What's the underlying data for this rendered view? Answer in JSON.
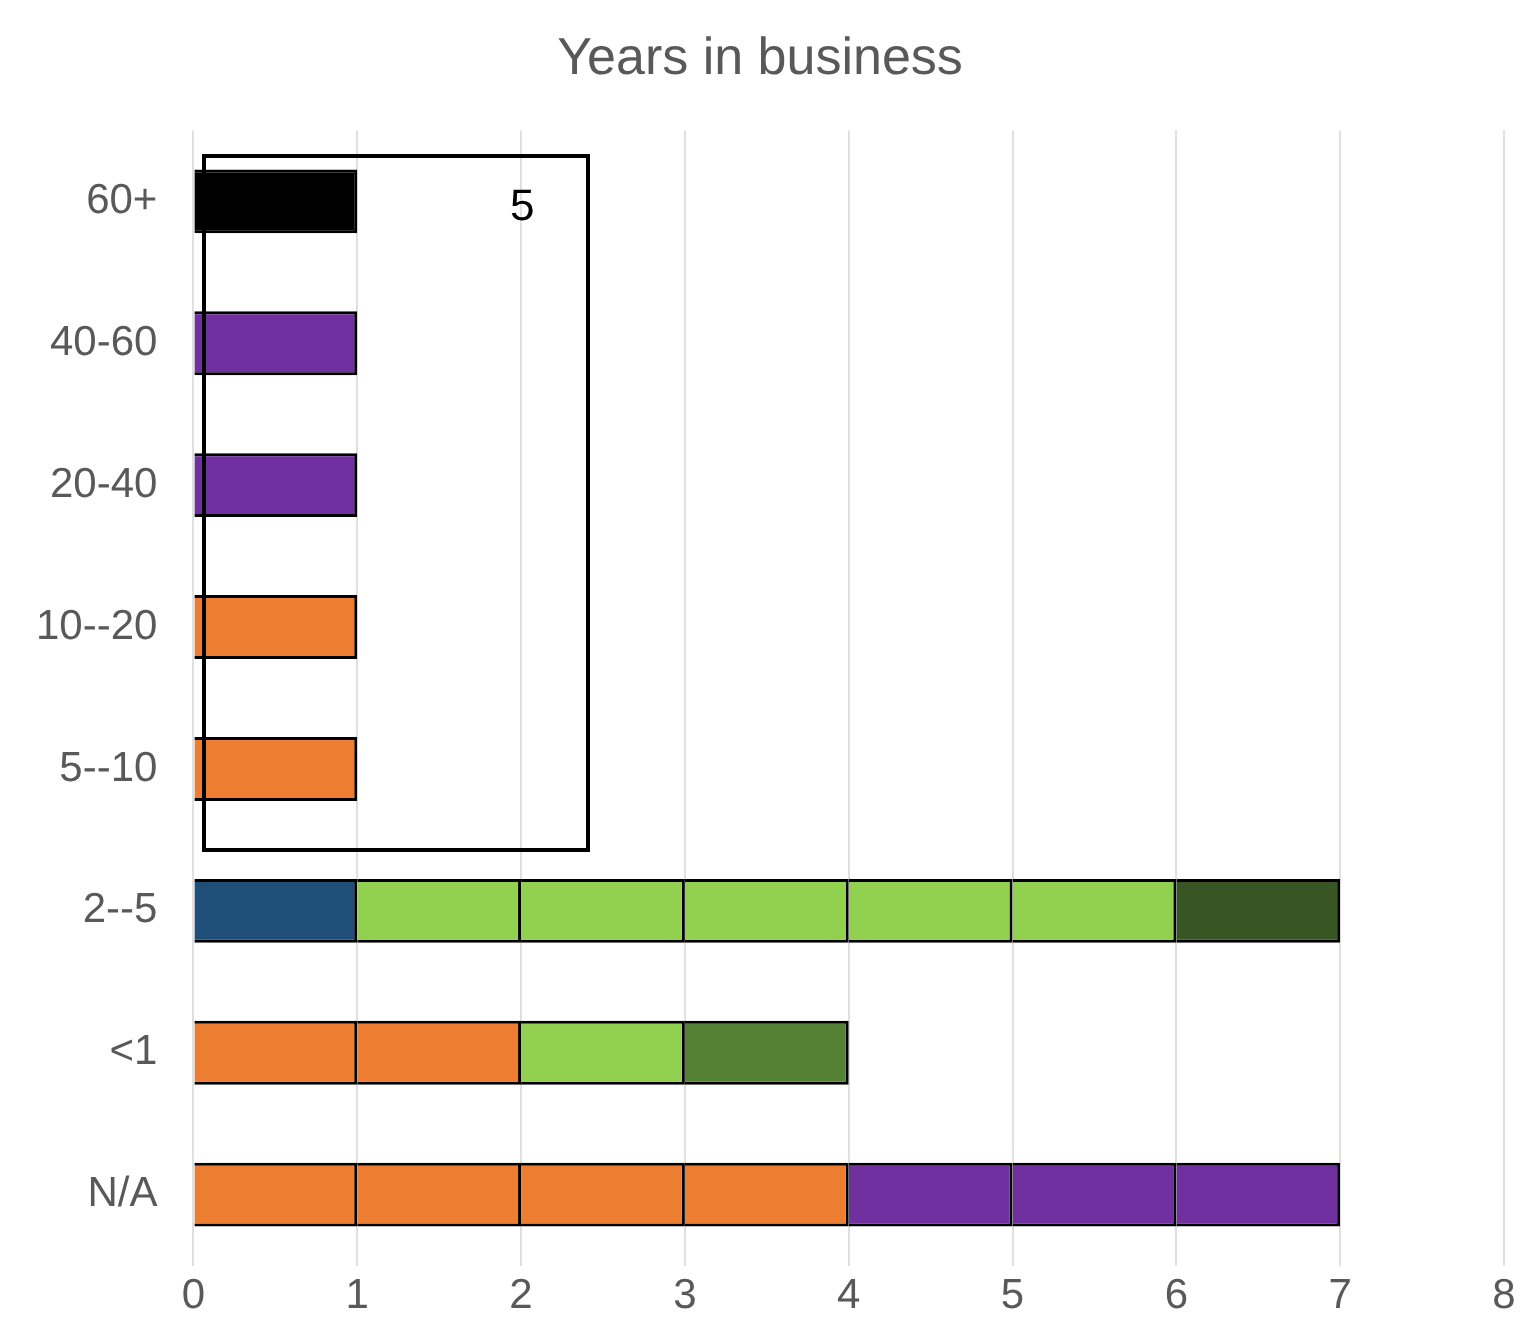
{
  "chart_data": {
    "type": "bar",
    "orientation": "horizontal",
    "stacked": true,
    "title": "Years in business",
    "categories": [
      "60+",
      "40-60",
      "20-40",
      "10--20",
      "5--10",
      "2--5",
      "<1",
      "N/A"
    ],
    "series": [
      {
        "values": [
          1,
          1,
          1,
          1,
          1,
          1,
          1,
          1
        ],
        "colors": [
          "#000000",
          "#7030a0",
          "#7030a0",
          "#ed7d31",
          "#ed7d31",
          "#1f4e79",
          "#ed7d31",
          "#ed7d31"
        ]
      },
      {
        "values": [
          null,
          null,
          null,
          null,
          null,
          1,
          1,
          1
        ],
        "colors": [
          null,
          null,
          null,
          null,
          null,
          "#92d050",
          "#ed7d31",
          "#ed7d31"
        ]
      },
      {
        "values": [
          null,
          null,
          null,
          null,
          null,
          1,
          1,
          1
        ],
        "colors": [
          null,
          null,
          null,
          null,
          null,
          "#92d050",
          "#92d050",
          "#ed7d31"
        ]
      },
      {
        "values": [
          null,
          null,
          null,
          null,
          null,
          1,
          1,
          1
        ],
        "colors": [
          null,
          null,
          null,
          null,
          null,
          "#92d050",
          "#548235",
          "#ed7d31"
        ]
      },
      {
        "values": [
          null,
          null,
          null,
          null,
          null,
          1,
          null,
          1
        ],
        "colors": [
          null,
          null,
          null,
          null,
          null,
          "#92d050",
          null,
          "#7030a0"
        ]
      },
      {
        "values": [
          null,
          null,
          null,
          null,
          null,
          1,
          null,
          1
        ],
        "colors": [
          null,
          null,
          null,
          null,
          null,
          "#92d050",
          null,
          "#7030a0"
        ]
      },
      {
        "values": [
          null,
          null,
          null,
          null,
          null,
          1,
          null,
          1
        ],
        "colors": [
          null,
          null,
          null,
          null,
          null,
          "#375623",
          null,
          "#7030a0"
        ]
      }
    ],
    "xlim": [
      0,
      8
    ],
    "xticks": [
      0,
      1,
      2,
      3,
      4,
      5,
      6,
      7,
      8
    ],
    "grid": "x",
    "legend": false,
    "annotations": [
      "5"
    ]
  }
}
